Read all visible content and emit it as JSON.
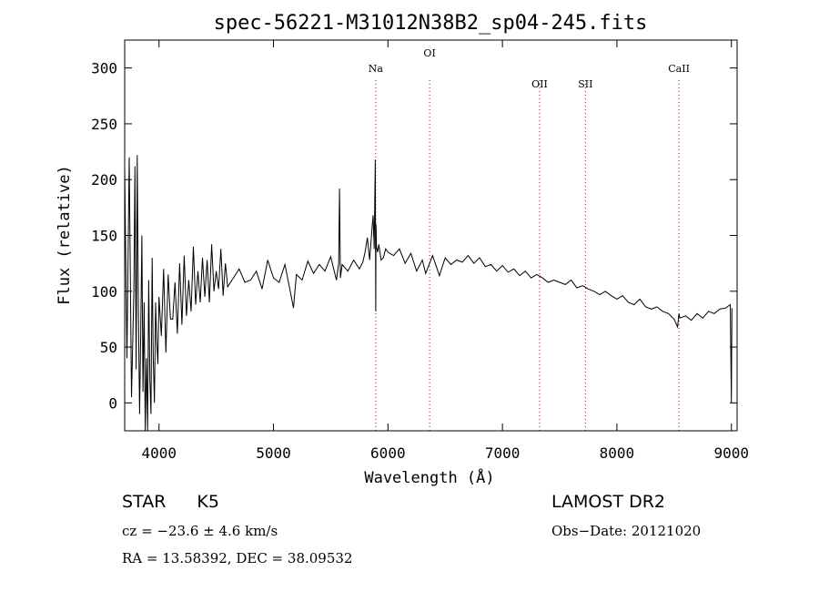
{
  "chart_data": {
    "type": "line",
    "title": "spec-56221-M31012N38B2_sp04-245.fits",
    "xlabel": "Wavelength (Å)",
    "ylabel": "Flux (relative)",
    "xlim": [
      3700,
      9050
    ],
    "ylim": [
      -25,
      325
    ],
    "x_ticks": [
      4000,
      5000,
      6000,
      7000,
      8000,
      9000
    ],
    "y_ticks": [
      0,
      50,
      100,
      150,
      200,
      250,
      300
    ],
    "grid": false,
    "line_color": "#000000",
    "marker_color": "#c00000",
    "line_markers": [
      {
        "label": "Na",
        "x": 5893
      },
      {
        "label": "OI",
        "x": 6364
      },
      {
        "label": "OII",
        "x": 7325
      },
      {
        "label": "SII",
        "x": 7725
      },
      {
        "label": "CaII",
        "x": 8542
      }
    ],
    "series": [
      {
        "x": [
          3700,
          3720,
          3740,
          3760,
          3780,
          3790,
          3800,
          3810,
          3820,
          3830,
          3840,
          3850,
          3860,
          3870,
          3880,
          3890,
          3900,
          3910,
          3920,
          3930,
          3940,
          3950,
          3960,
          3970,
          3980,
          3990,
          4000,
          4020,
          4040,
          4060,
          4080,
          4100,
          4120,
          4140,
          4160,
          4180,
          4200,
          4220,
          4240,
          4260,
          4280,
          4300,
          4320,
          4340,
          4360,
          4380,
          4400,
          4420,
          4440,
          4460,
          4480,
          4500,
          4520,
          4540,
          4560,
          4580,
          4600,
          4650,
          4700,
          4750,
          4800,
          4850,
          4900,
          4950,
          5000,
          5050,
          5100,
          5150,
          5175,
          5200,
          5250,
          5300,
          5350,
          5400,
          5450,
          5500,
          5550,
          5570,
          5577,
          5585,
          5600,
          5650,
          5700,
          5750,
          5780,
          5800,
          5820,
          5840,
          5860,
          5870,
          5880,
          5889,
          5893,
          5896,
          5900,
          5910,
          5920,
          5940,
          5960,
          5980,
          6000,
          6050,
          6100,
          6150,
          6200,
          6250,
          6300,
          6330,
          6364,
          6390,
          6450,
          6500,
          6550,
          6600,
          6650,
          6700,
          6750,
          6800,
          6850,
          6900,
          6950,
          7000,
          7050,
          7100,
          7150,
          7200,
          7250,
          7300,
          7350,
          7400,
          7450,
          7500,
          7550,
          7600,
          7650,
          7700,
          7750,
          7800,
          7850,
          7900,
          7950,
          8000,
          8050,
          8100,
          8150,
          8200,
          8250,
          8300,
          8350,
          8400,
          8450,
          8500,
          8530,
          8542,
          8550,
          8600,
          8650,
          8700,
          8750,
          8800,
          8850,
          8900,
          8950,
          8990,
          9000,
          9005
        ],
        "y": [
          210,
          40,
          220,
          5,
          100,
          212,
          30,
          222,
          80,
          -10,
          60,
          150,
          10,
          90,
          -30,
          40,
          -25,
          110,
          20,
          -10,
          130,
          40,
          0,
          90,
          55,
          35,
          95,
          60,
          120,
          45,
          115,
          75,
          75,
          108,
          62,
          125,
          70,
          132,
          78,
          110,
          82,
          140,
          88,
          118,
          90,
          130,
          95,
          128,
          90,
          142,
          100,
          118,
          102,
          138,
          96,
          125,
          104,
          112,
          120,
          108,
          110,
          118,
          102,
          128,
          112,
          108,
          124,
          98,
          85,
          115,
          110,
          127,
          116,
          124,
          118,
          131,
          110,
          125,
          192,
          112,
          124,
          118,
          128,
          120,
          126,
          135,
          148,
          128,
          155,
          168,
          138,
          218,
          82,
          160,
          140,
          135,
          142,
          128,
          130,
          138,
          135,
          132,
          138,
          125,
          134,
          118,
          128,
          116,
          125,
          132,
          114,
          130,
          124,
          128,
          126,
          132,
          125,
          130,
          122,
          124,
          118,
          123,
          117,
          120,
          114,
          118,
          112,
          115,
          112,
          108,
          110,
          108,
          106,
          110,
          103,
          105,
          102,
          100,
          97,
          100,
          96,
          93,
          96,
          90,
          88,
          93,
          86,
          84,
          86,
          82,
          80,
          75,
          68,
          80,
          76,
          78,
          74,
          80,
          76,
          82,
          80,
          84,
          85,
          88,
          0,
          85
        ]
      }
    ]
  },
  "info": {
    "object_class": "STAR",
    "subclass": "K5",
    "survey": "LAMOST DR2",
    "cz": "cz = −23.6 ± 4.6 km/s",
    "obs_date": "Obs−Date: 20121020",
    "coords": "RA =  13.58392, DEC =  38.09532"
  }
}
